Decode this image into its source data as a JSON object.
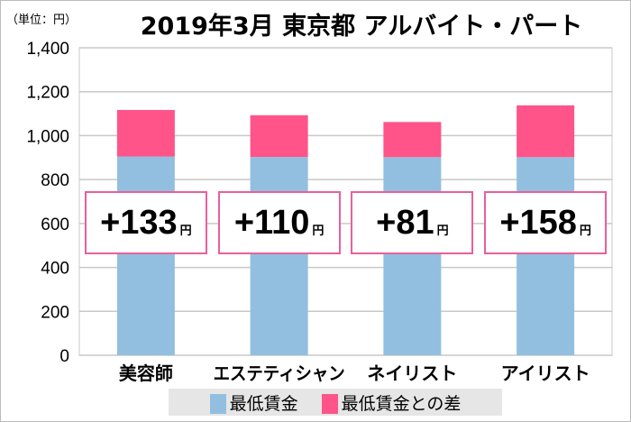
{
  "chart_data": {
    "type": "bar",
    "stacked": true,
    "title": "2019年3月 東京都 アルバイト・パート",
    "unit_label": "（単位：円）",
    "categories": [
      "美容師",
      "エステティシャン",
      "ネイリスト",
      "アイリスト"
    ],
    "series": [
      {
        "name": "最低賃金",
        "color": "#92bfdf",
        "values": [
          905,
          903,
          902,
          902
        ]
      },
      {
        "name": "最低賃金との差",
        "color": "#fe5489",
        "values": [
          212,
          190,
          160,
          236
        ]
      }
    ],
    "annotations": [
      "+133",
      "+110",
      "+81",
      "+158"
    ],
    "annotation_unit": "円",
    "ylim": [
      0,
      1400
    ],
    "yticks": [
      "0",
      "200",
      "400",
      "600",
      "800",
      "1,000",
      "1,200",
      "1,400"
    ],
    "ytick_values": [
      0,
      200,
      400,
      600,
      800,
      1000,
      1200,
      1400
    ],
    "grid": true,
    "legend_position": "bottom"
  }
}
